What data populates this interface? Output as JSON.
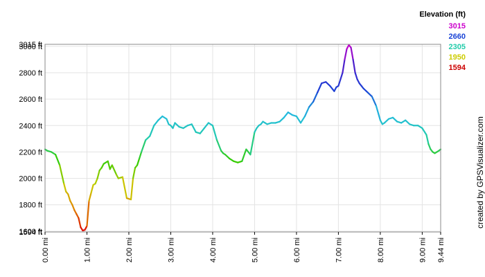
{
  "chart_data": {
    "type": "line",
    "title": "",
    "xlabel": "",
    "ylabel": "",
    "xlim": [
      0,
      9.44
    ],
    "ylim": [
      1594,
      3015
    ],
    "grid": true,
    "y_ticks": [
      {
        "value": 1594,
        "label": "1594 ft"
      },
      {
        "value": 1600,
        "label": "1600 ft"
      },
      {
        "value": 1800,
        "label": "1800 ft"
      },
      {
        "value": 2000,
        "label": "2000 ft"
      },
      {
        "value": 2200,
        "label": "2200 ft"
      },
      {
        "value": 2400,
        "label": "2400 ft"
      },
      {
        "value": 2600,
        "label": "2600 ft"
      },
      {
        "value": 2800,
        "label": "2800 ft"
      },
      {
        "value": 3000,
        "label": "3000 ft"
      },
      {
        "value": 3015,
        "label": "3015 ft"
      }
    ],
    "x_ticks": [
      {
        "value": 0,
        "label": "0.00 mi"
      },
      {
        "value": 1,
        "label": "1.00 mi"
      },
      {
        "value": 2,
        "label": "2.00 mi"
      },
      {
        "value": 3,
        "label": "3.00 mi"
      },
      {
        "value": 4,
        "label": "4.00 mi"
      },
      {
        "value": 5,
        "label": "5.00 mi"
      },
      {
        "value": 6,
        "label": "6.00 mi"
      },
      {
        "value": 7,
        "label": "7.00 mi"
      },
      {
        "value": 8,
        "label": "8.00 mi"
      },
      {
        "value": 9,
        "label": "9.00 mi"
      },
      {
        "value": 9.44,
        "label": "9.44 mi"
      }
    ],
    "legend": {
      "title": "Elevation (ft)",
      "position": "top-right",
      "items": [
        {
          "label": "3015",
          "color": "#cc00cc"
        },
        {
          "label": "2660",
          "color": "#1a44d6"
        },
        {
          "label": "2305",
          "color": "#22ccaa"
        },
        {
          "label": "1950",
          "color": "#cccc00"
        },
        {
          "label": "1594",
          "color": "#cc0000"
        }
      ]
    },
    "color_scale": [
      {
        "elevation": 1594,
        "color": "#dd0000"
      },
      {
        "elevation": 1775,
        "color": "#e08a00"
      },
      {
        "elevation": 1950,
        "color": "#c8cc00"
      },
      {
        "elevation": 2130,
        "color": "#33cc00"
      },
      {
        "elevation": 2305,
        "color": "#22ccaa"
      },
      {
        "elevation": 2480,
        "color": "#22bbdd"
      },
      {
        "elevation": 2660,
        "color": "#1a44d6"
      },
      {
        "elevation": 2840,
        "color": "#4422cc"
      },
      {
        "elevation": 3015,
        "color": "#cc00cc"
      }
    ],
    "series": [
      {
        "x": [
          0.0,
          0.05,
          0.15,
          0.25,
          0.35,
          0.45,
          0.5,
          0.55,
          0.6,
          0.65,
          0.7,
          0.75,
          0.8,
          0.85,
          0.9,
          0.95,
          1.0,
          1.05,
          1.1,
          1.15,
          1.2,
          1.25,
          1.3,
          1.35,
          1.4,
          1.5,
          1.55,
          1.6,
          1.7,
          1.75,
          1.85,
          1.95,
          2.05,
          2.1,
          2.15,
          2.2,
          2.25,
          2.3,
          2.4,
          2.5,
          2.6,
          2.7,
          2.8,
          2.9,
          2.95,
          3.0,
          3.05,
          3.1,
          3.2,
          3.3,
          3.4,
          3.5,
          3.6,
          3.7,
          3.8,
          3.9,
          4.0,
          4.1,
          4.2,
          4.25,
          4.3,
          4.4,
          4.5,
          4.6,
          4.7,
          4.8,
          4.9,
          5.0,
          5.05,
          5.1,
          5.15,
          5.2,
          5.25,
          5.3,
          5.4,
          5.5,
          5.6,
          5.7,
          5.8,
          5.9,
          6.0,
          6.1,
          6.2,
          6.3,
          6.4,
          6.5,
          6.6,
          6.7,
          6.8,
          6.9,
          6.95,
          7.0,
          7.05,
          7.1,
          7.15,
          7.2,
          7.25,
          7.3,
          7.35,
          7.4,
          7.45,
          7.5,
          7.55,
          7.6,
          7.7,
          7.8,
          7.9,
          8.0,
          8.05,
          8.1,
          8.2,
          8.3,
          8.4,
          8.5,
          8.6,
          8.7,
          8.8,
          8.9,
          9.0,
          9.1,
          9.15,
          9.2,
          9.25,
          9.3,
          9.35,
          9.4,
          9.44
        ],
        "y": [
          2220,
          2210,
          2200,
          2180,
          2100,
          1960,
          1900,
          1880,
          1830,
          1800,
          1760,
          1730,
          1700,
          1630,
          1605,
          1610,
          1640,
          1830,
          1890,
          1950,
          1960,
          2000,
          2060,
          2080,
          2110,
          2130,
          2070,
          2100,
          2030,
          2000,
          2010,
          1850,
          1840,
          2000,
          2080,
          2100,
          2150,
          2200,
          2290,
          2320,
          2400,
          2440,
          2470,
          2450,
          2410,
          2400,
          2380,
          2420,
          2390,
          2380,
          2400,
          2410,
          2350,
          2340,
          2380,
          2420,
          2400,
          2290,
          2210,
          2190,
          2180,
          2150,
          2130,
          2120,
          2130,
          2220,
          2180,
          2350,
          2380,
          2400,
          2410,
          2430,
          2420,
          2410,
          2420,
          2420,
          2430,
          2460,
          2500,
          2480,
          2470,
          2420,
          2470,
          2540,
          2580,
          2650,
          2720,
          2730,
          2700,
          2660,
          2690,
          2700,
          2750,
          2800,
          2900,
          2980,
          3010,
          2990,
          2900,
          2800,
          2750,
          2720,
          2700,
          2680,
          2650,
          2620,
          2550,
          2440,
          2410,
          2420,
          2450,
          2460,
          2430,
          2420,
          2440,
          2410,
          2400,
          2400,
          2380,
          2330,
          2260,
          2220,
          2200,
          2190,
          2200,
          2210,
          2220
        ]
      }
    ]
  },
  "credit": "created by GPSVisualizer.com"
}
